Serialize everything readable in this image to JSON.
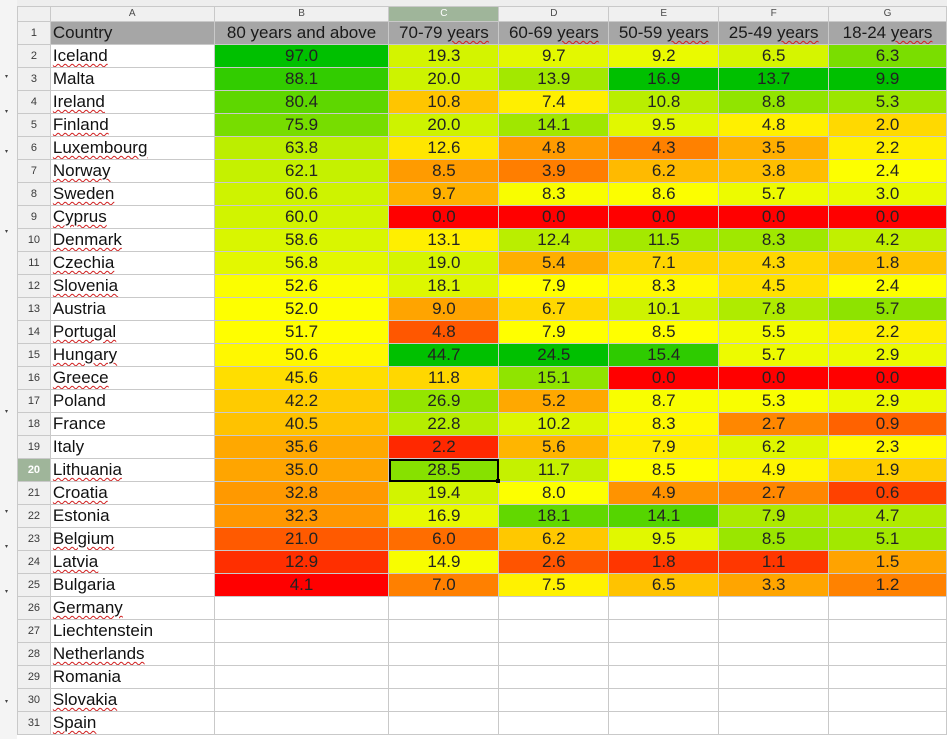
{
  "columns": {
    "letters": [
      "A",
      "B",
      "C",
      "D",
      "E",
      "F",
      "G"
    ],
    "selected": "C"
  },
  "header": {
    "row_number": "1",
    "labels": [
      "Country",
      "80 years and above",
      "70-79 years",
      "60-69 years",
      "50-59 years",
      "25-49 years",
      "18-24 years"
    ]
  },
  "active_cell": {
    "row": "20",
    "col": "C"
  },
  "colors": {
    "header_fill": "#a6a6a6",
    "scale_low": "#ff0000",
    "scale_mid": "#ffff00",
    "scale_high": "#00c000",
    "selection": "#9fb59a"
  },
  "rows": [
    {
      "n": "2",
      "country": "Iceland",
      "v": [
        "97.0",
        "19.3",
        "9.7",
        "9.2",
        "6.5",
        "6.3"
      ]
    },
    {
      "n": "3",
      "country": "Malta",
      "v": [
        "88.1",
        "20.0",
        "13.9",
        "16.9",
        "13.7",
        "9.9"
      ]
    },
    {
      "n": "4",
      "country": "Ireland",
      "v": [
        "80.4",
        "10.8",
        "7.4",
        "10.8",
        "8.8",
        "5.3"
      ]
    },
    {
      "n": "5",
      "country": "Finland",
      "v": [
        "75.9",
        "20.0",
        "14.1",
        "9.5",
        "4.8",
        "2.0"
      ]
    },
    {
      "n": "6",
      "country": "Luxembourg",
      "v": [
        "63.8",
        "12.6",
        "4.8",
        "4.3",
        "3.5",
        "2.2"
      ]
    },
    {
      "n": "7",
      "country": "Norway",
      "v": [
        "62.1",
        "8.5",
        "3.9",
        "6.2",
        "3.8",
        "2.4"
      ]
    },
    {
      "n": "8",
      "country": "Sweden",
      "v": [
        "60.6",
        "9.7",
        "8.3",
        "8.6",
        "5.7",
        "3.0"
      ]
    },
    {
      "n": "9",
      "country": "Cyprus",
      "v": [
        "60.0",
        "0.0",
        "0.0",
        "0.0",
        "0.0",
        "0.0"
      ]
    },
    {
      "n": "10",
      "country": "Denmark",
      "v": [
        "58.6",
        "13.1",
        "12.4",
        "11.5",
        "8.3",
        "4.2"
      ]
    },
    {
      "n": "11",
      "country": "Czechia",
      "v": [
        "56.8",
        "19.0",
        "5.4",
        "7.1",
        "4.3",
        "1.8"
      ]
    },
    {
      "n": "12",
      "country": "Slovenia",
      "v": [
        "52.6",
        "18.1",
        "7.9",
        "8.3",
        "4.5",
        "2.4"
      ]
    },
    {
      "n": "13",
      "country": "Austria",
      "v": [
        "52.0",
        "9.0",
        "6.7",
        "10.1",
        "7.8",
        "5.7"
      ]
    },
    {
      "n": "14",
      "country": "Portugal",
      "v": [
        "51.7",
        "4.8",
        "7.9",
        "8.5",
        "5.5",
        "2.2"
      ]
    },
    {
      "n": "15",
      "country": "Hungary",
      "v": [
        "50.6",
        "44.7",
        "24.5",
        "15.4",
        "5.7",
        "2.9"
      ]
    },
    {
      "n": "16",
      "country": "Greece",
      "v": [
        "45.6",
        "11.8",
        "15.1",
        "0.0",
        "0.0",
        "0.0"
      ]
    },
    {
      "n": "17",
      "country": "Poland",
      "v": [
        "42.2",
        "26.9",
        "5.2",
        "8.7",
        "5.3",
        "2.9"
      ]
    },
    {
      "n": "18",
      "country": "France",
      "v": [
        "40.5",
        "22.8",
        "10.2",
        "8.3",
        "2.7",
        "0.9"
      ]
    },
    {
      "n": "19",
      "country": "Italy",
      "v": [
        "35.6",
        "2.2",
        "5.6",
        "7.9",
        "6.2",
        "2.3"
      ]
    },
    {
      "n": "20",
      "country": "Lithuania",
      "v": [
        "35.0",
        "28.5",
        "11.7",
        "8.5",
        "4.9",
        "1.9"
      ]
    },
    {
      "n": "21",
      "country": "Croatia",
      "v": [
        "32.8",
        "19.4",
        "8.0",
        "4.9",
        "2.7",
        "0.6"
      ]
    },
    {
      "n": "22",
      "country": "Estonia",
      "v": [
        "32.3",
        "16.9",
        "18.1",
        "14.1",
        "7.9",
        "4.7"
      ]
    },
    {
      "n": "23",
      "country": "Belgium",
      "v": [
        "21.0",
        "6.0",
        "6.2",
        "9.5",
        "8.5",
        "5.1"
      ]
    },
    {
      "n": "24",
      "country": "Latvia",
      "v": [
        "12.9",
        "14.9",
        "2.6",
        "1.8",
        "1.1",
        "1.5"
      ]
    },
    {
      "n": "25",
      "country": "Bulgaria",
      "v": [
        "4.1",
        "7.0",
        "7.5",
        "6.5",
        "3.3",
        "1.2"
      ]
    },
    {
      "n": "26",
      "country": "Germany",
      "v": [
        "",
        "",
        "",
        "",
        "",
        ""
      ]
    },
    {
      "n": "27",
      "country": "Liechtenstein",
      "v": [
        "",
        "",
        "",
        "",
        "",
        ""
      ]
    },
    {
      "n": "28",
      "country": "Netherlands",
      "v": [
        "",
        "",
        "",
        "",
        "",
        ""
      ]
    },
    {
      "n": "29",
      "country": "Romania",
      "v": [
        "",
        "",
        "",
        "",
        "",
        ""
      ]
    },
    {
      "n": "30",
      "country": "Slovakia",
      "v": [
        "",
        "",
        "",
        "",
        "",
        ""
      ]
    },
    {
      "n": "31",
      "country": "Spain",
      "v": [
        "",
        "",
        "",
        "",
        "",
        ""
      ]
    }
  ]
}
